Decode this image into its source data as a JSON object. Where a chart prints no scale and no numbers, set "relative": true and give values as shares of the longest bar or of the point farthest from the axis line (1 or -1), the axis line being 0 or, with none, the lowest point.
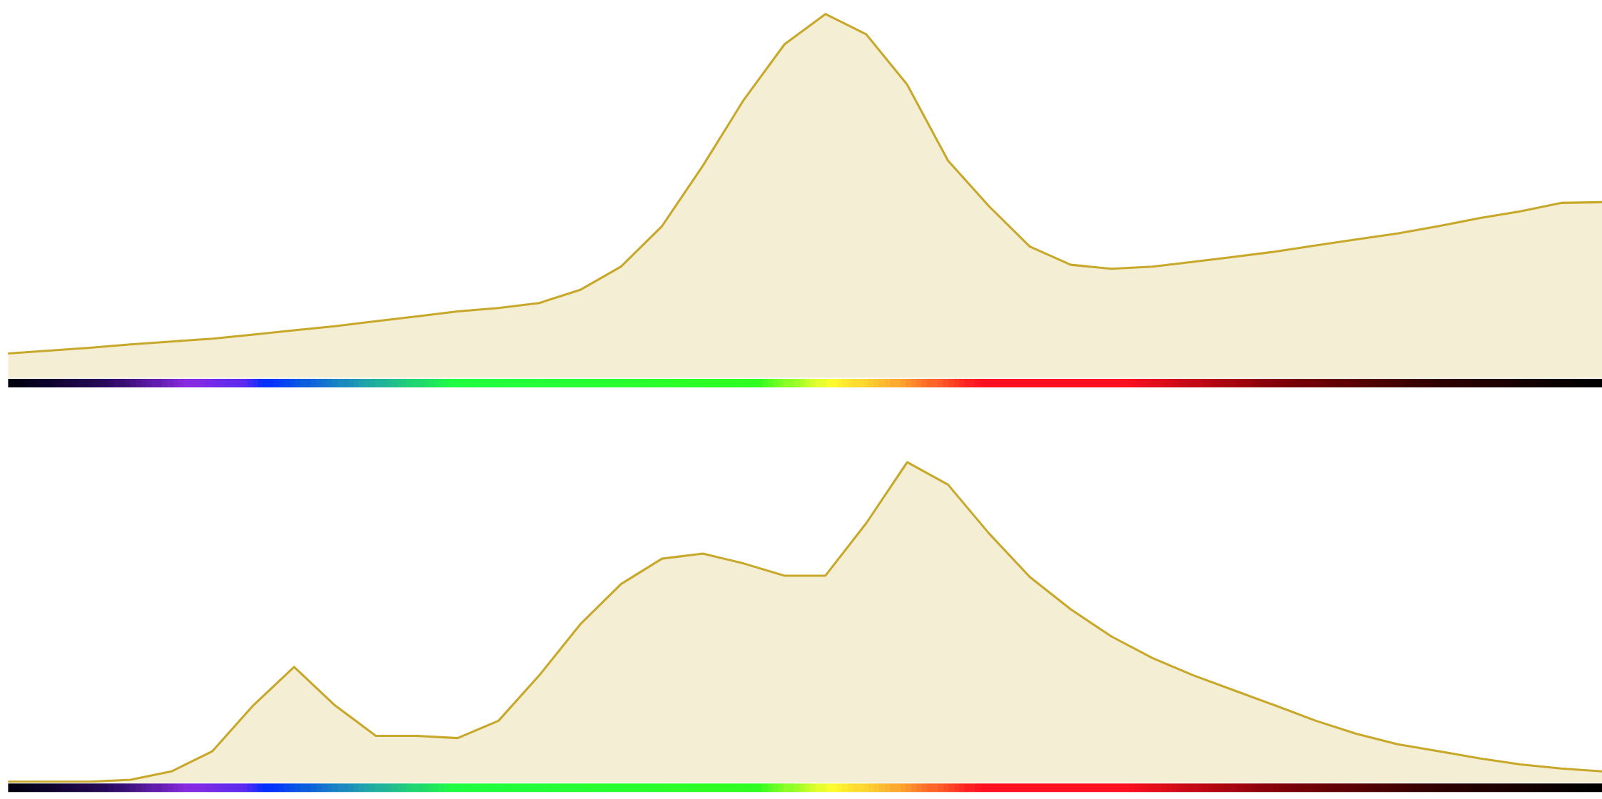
{
  "chart_data": [
    {
      "type": "area",
      "relative": true,
      "categories": [
        null,
        null,
        null,
        null,
        null,
        null,
        null,
        null,
        null,
        null,
        null,
        null,
        null,
        null,
        null,
        null,
        null,
        null,
        null,
        null,
        null,
        null,
        null,
        null,
        null,
        null,
        null,
        null,
        null,
        null,
        null,
        null,
        null,
        null,
        null,
        null,
        null,
        null,
        null,
        null
      ],
      "series": [
        {
          "color": "#c8a82a",
          "values": [
            0.067,
            0.075,
            0.083,
            0.092,
            0.1,
            0.108,
            0.119,
            0.131,
            0.142,
            0.156,
            0.169,
            0.183,
            0.192,
            0.206,
            0.242,
            0.306,
            0.417,
            0.583,
            0.764,
            0.917,
            1,
            0.944,
            0.806,
            0.597,
            0.472,
            0.361,
            0.311,
            0.3,
            0.306,
            0.319,
            0.333,
            0.347,
            0.364,
            0.381,
            0.397,
            0.417,
            0.439,
            0.458,
            0.481,
            0.483
          ]
        }
      ]
    },
    {
      "type": "area",
      "relative": true,
      "categories": [
        null,
        null,
        null,
        null,
        null,
        null,
        null,
        null,
        null,
        null,
        null,
        null,
        null,
        null,
        null,
        null,
        null,
        null,
        null,
        null,
        null,
        null,
        null,
        null,
        null,
        null,
        null,
        null,
        null,
        null,
        null,
        null,
        null,
        null,
        null,
        null,
        null,
        null,
        null,
        null
      ],
      "series": [
        {
          "color": "#c8a82a",
          "values": [
            0.003,
            0.003,
            0.003,
            0.009,
            0.035,
            0.098,
            0.241,
            0.361,
            0.241,
            0.146,
            0.146,
            0.139,
            0.193,
            0.335,
            0.494,
            0.62,
            0.699,
            0.715,
            0.684,
            0.646,
            0.646,
            0.81,
            1,
            0.93,
            0.778,
            0.642,
            0.541,
            0.456,
            0.389,
            0.335,
            0.288,
            0.241,
            0.193,
            0.152,
            0.12,
            0.098,
            0.076,
            0.057,
            0.044,
            0.035
          ]
        }
      ]
    }
  ]
}
